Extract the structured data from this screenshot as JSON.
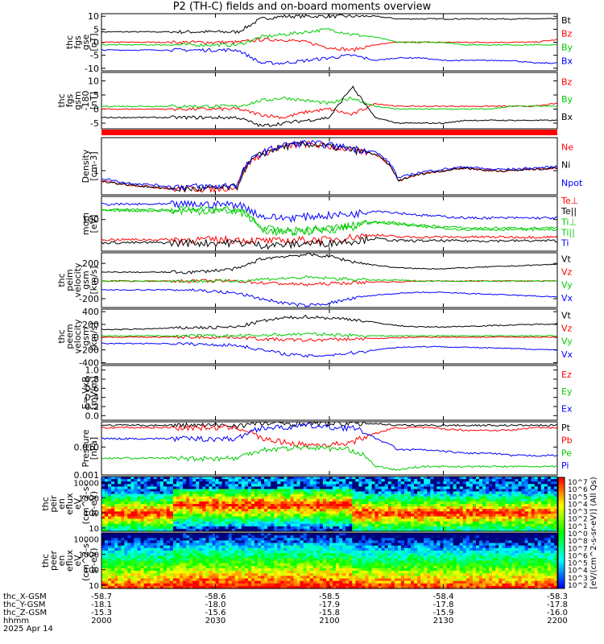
{
  "title": "P2 (TH-C) fields and on-board moments overview",
  "colors": {
    "black": "#000000",
    "red": "#ff0000",
    "green": "#00cc00",
    "blue": "#0000ff"
  },
  "chart_data": [
    {
      "type": "line",
      "ylabel": [
        "thc",
        "fgs",
        "gse",
        "[nT]"
      ],
      "yticks": [
        "10",
        "5",
        "0",
        "-5",
        "-10"
      ],
      "ylim": [
        -11,
        11
      ],
      "series": [
        {
          "name": "Bt",
          "color": "#000000",
          "values": [
            4,
            4,
            4,
            4,
            4,
            4,
            4,
            9,
            10,
            10,
            10,
            10,
            10,
            9,
            9,
            9,
            9,
            9,
            9,
            9,
            9
          ]
        },
        {
          "name": "Bz",
          "color": "#ff0000",
          "values": [
            0,
            0,
            0,
            0,
            0,
            0,
            0,
            1,
            1,
            0,
            -2,
            -3,
            -1,
            0,
            0,
            0,
            0,
            0,
            0,
            0,
            1
          ]
        },
        {
          "name": "By",
          "color": "#00cc00",
          "values": [
            -1,
            -1,
            -1,
            -1,
            -1,
            -1,
            -1,
            2,
            3,
            4,
            5,
            3,
            2,
            0,
            0,
            0,
            -1,
            -1,
            -1,
            -1,
            -1
          ]
        },
        {
          "name": "Bx",
          "color": "#0000ff",
          "values": [
            -3,
            -3,
            -3,
            -3,
            -3,
            -3,
            -3,
            -8,
            -8,
            -7,
            -6,
            -5,
            -7,
            -6,
            -6,
            -7,
            -7,
            -7,
            -7,
            -8,
            -8
          ]
        }
      ]
    },
    {
      "type": "line",
      "ylabel": [
        "thc",
        "fgs",
        "gsm",
        "-180",
        "[nT]"
      ],
      "yticks": [
        "10",
        "5",
        "0",
        "-5"
      ],
      "ylim": [
        -7,
        13
      ],
      "series": [
        {
          "name": "Bz",
          "color": "#ff0000",
          "values": [
            0,
            0,
            0,
            0,
            0,
            0,
            0,
            -2,
            -3,
            -1,
            0,
            -2,
            2,
            1,
            1,
            1,
            1,
            1,
            1,
            1,
            2
          ]
        },
        {
          "name": "By",
          "color": "#00cc00",
          "values": [
            1,
            1,
            1,
            1,
            1,
            1,
            1,
            3,
            4,
            3,
            2,
            4,
            1,
            0,
            0,
            0,
            0,
            0,
            1,
            1,
            1
          ]
        },
        {
          "name": "Bx",
          "color": "#000000",
          "values": [
            -3,
            -3,
            -3,
            -3,
            -3,
            -3,
            -3,
            -6,
            -5,
            -4,
            -3,
            8,
            -3,
            -5,
            -5,
            -5,
            -4,
            -4,
            -4,
            -4,
            -4
          ]
        }
      ]
    },
    {
      "type": "line",
      "ylabel": [
        "Density",
        "[cm-3]"
      ],
      "yticks": [
        "1"
      ],
      "ylog": true,
      "ylim": [
        0.2,
        9
      ],
      "series": [
        {
          "name": "Ne",
          "color": "#ff0000",
          "values": [
            0.5,
            0.4,
            0.35,
            0.3,
            0.3,
            0.3,
            0.35,
            3,
            5,
            6,
            5,
            4,
            3,
            0.5,
            0.8,
            1,
            1.2,
            1,
            1,
            1.1,
            1.2
          ]
        },
        {
          "name": "Ni",
          "color": "#000000",
          "values": [
            0.5,
            0.4,
            0.35,
            0.3,
            0.3,
            0.3,
            0.35,
            3,
            5,
            6,
            5,
            4,
            3,
            0.5,
            0.8,
            1,
            1.2,
            1,
            1,
            1.1,
            1.2
          ]
        },
        {
          "name": "Npot",
          "color": "#0000ff",
          "values": [
            0.6,
            0.45,
            0.4,
            0.35,
            0.35,
            0.35,
            0.4,
            3.2,
            5.5,
            6.5,
            5.5,
            4.5,
            3.5,
            0.6,
            0.9,
            1.1,
            1.3,
            1.1,
            1.1,
            1.2,
            1.3
          ]
        }
      ]
    },
    {
      "type": "line",
      "ylabel": [
        "mom",
        "[eV]"
      ],
      "yticks": [
        "100"
      ],
      "ylog": true,
      "ylim": [
        15,
        400
      ],
      "series": [
        {
          "name": "Te⊥",
          "color": "#ff0000",
          "values": [
            30,
            30,
            30,
            30,
            30,
            30,
            30,
            28,
            28,
            30,
            30,
            35,
            40,
            35,
            35,
            35,
            35,
            35,
            35,
            35,
            35
          ]
        },
        {
          "name": "Te||",
          "color": "#000000",
          "values": [
            25,
            25,
            25,
            25,
            25,
            25,
            25,
            22,
            22,
            24,
            25,
            28,
            32,
            28,
            28,
            28,
            28,
            28,
            28,
            28,
            28
          ]
        },
        {
          "name": "Ti⊥",
          "color": "#00cc00",
          "values": [
            180,
            180,
            180,
            180,
            180,
            180,
            180,
            60,
            50,
            55,
            60,
            70,
            90,
            80,
            70,
            65,
            60,
            60,
            60,
            60,
            60
          ]
        },
        {
          "name": "Ti||",
          "color": "#00cc00",
          "values": [
            170,
            170,
            170,
            170,
            170,
            170,
            170,
            55,
            45,
            50,
            55,
            65,
            85,
            75,
            65,
            60,
            55,
            55,
            55,
            55,
            55
          ]
        },
        {
          "name": "Ti",
          "color": "#0000ff",
          "values": [
            250,
            250,
            250,
            250,
            250,
            250,
            250,
            120,
            110,
            120,
            130,
            140,
            170,
            150,
            130,
            120,
            110,
            110,
            110,
            110,
            110
          ]
        }
      ]
    },
    {
      "type": "line",
      "ylabel": [
        "thc",
        "peim",
        "velocity",
        "gsm",
        "[km/s]"
      ],
      "yticks": [
        "200",
        "0",
        "-200"
      ],
      "ylim": [
        -300,
        320
      ],
      "series": [
        {
          "name": "Vt",
          "color": "#000000",
          "values": [
            100,
            100,
            100,
            100,
            100,
            120,
            140,
            250,
            280,
            300,
            280,
            220,
            180,
            150,
            140,
            140,
            150,
            160,
            170,
            180,
            190
          ]
        },
        {
          "name": "Vz",
          "color": "#ff0000",
          "values": [
            0,
            0,
            0,
            0,
            0,
            0,
            0,
            -20,
            -30,
            -40,
            -30,
            -20,
            -10,
            -10,
            0,
            0,
            0,
            0,
            0,
            0,
            0
          ]
        },
        {
          "name": "Vy",
          "color": "#00cc00",
          "values": [
            0,
            0,
            0,
            0,
            0,
            0,
            0,
            20,
            30,
            40,
            30,
            20,
            10,
            10,
            0,
            0,
            0,
            0,
            0,
            0,
            0
          ]
        },
        {
          "name": "Vx",
          "color": "#0000ff",
          "values": [
            -100,
            -100,
            -100,
            -100,
            -100,
            -120,
            -140,
            -200,
            -250,
            -280,
            -250,
            -200,
            -160,
            -140,
            -130,
            -130,
            -140,
            -150,
            -160,
            -170,
            -180
          ]
        }
      ]
    },
    {
      "type": "line",
      "ylabel": [
        "thc",
        "peem",
        "velocity",
        "gsm",
        "[km/s]"
      ],
      "yticks": [
        "400",
        "200",
        "0",
        "-200",
        "-400"
      ],
      "ylim": [
        -420,
        440
      ],
      "series": [
        {
          "name": "Vt",
          "color": "#000000",
          "values": [
            120,
            120,
            130,
            140,
            150,
            150,
            160,
            250,
            300,
            320,
            300,
            280,
            230,
            180,
            160,
            160,
            170,
            180,
            190,
            200,
            210
          ]
        },
        {
          "name": "Vz",
          "color": "#ff0000",
          "values": [
            0,
            0,
            0,
            0,
            0,
            0,
            0,
            -30,
            -40,
            -50,
            -40,
            -30,
            -20,
            -10,
            0,
            0,
            0,
            0,
            0,
            0,
            0
          ]
        },
        {
          "name": "Vy",
          "color": "#00cc00",
          "values": [
            20,
            20,
            20,
            20,
            20,
            20,
            20,
            30,
            40,
            50,
            40,
            30,
            20,
            20,
            20,
            20,
            20,
            20,
            20,
            20,
            20
          ]
        },
        {
          "name": "Vx",
          "color": "#0000ff",
          "values": [
            -100,
            -100,
            -100,
            -100,
            -110,
            -120,
            -130,
            -200,
            -260,
            -300,
            -280,
            -250,
            -200,
            -160,
            -150,
            -150,
            -160,
            -170,
            -180,
            -190,
            -200
          ]
        }
      ]
    },
    {
      "type": "line",
      "ylabel": [
        "E=-VxB",
        "[mV/m]"
      ],
      "yticks": [
        "1.0",
        "0.8",
        "0.6",
        "0.4",
        "0.2",
        "0.0"
      ],
      "ylim": [
        -0.1,
        1.1
      ],
      "series": [
        {
          "name": "Ez",
          "color": "#ff0000",
          "values": []
        },
        {
          "name": "Ey",
          "color": "#00cc00",
          "values": []
        },
        {
          "name": "Ex",
          "color": "#0000ff",
          "values": []
        }
      ]
    },
    {
      "type": "line",
      "ylabel": [
        "Pressure",
        "[nPa]"
      ],
      "yticks": [
        "0.010",
        "0.001"
      ],
      "ylog": true,
      "ylim": [
        0.001,
        0.08
      ],
      "series": [
        {
          "name": "Pt",
          "color": "#000000",
          "values": [
            0.06,
            0.06,
            0.06,
            0.06,
            0.06,
            0.06,
            0.06,
            0.07,
            0.07,
            0.07,
            0.07,
            0.07,
            0.07,
            0.06,
            0.06,
            0.06,
            0.06,
            0.06,
            0.06,
            0.06,
            0.06
          ]
        },
        {
          "name": "Pb",
          "color": "#ff0000",
          "values": [
            0.05,
            0.05,
            0.05,
            0.05,
            0.05,
            0.05,
            0.05,
            0.02,
            0.015,
            0.012,
            0.012,
            0.015,
            0.03,
            0.05,
            0.05,
            0.045,
            0.04,
            0.04,
            0.04,
            0.05,
            0.05
          ]
        },
        {
          "name": "Pe",
          "color": "#00cc00",
          "values": [
            0.004,
            0.004,
            0.004,
            0.004,
            0.004,
            0.004,
            0.004,
            0.008,
            0.009,
            0.01,
            0.009,
            0.008,
            0.002,
            0.0015,
            0.002,
            0.002,
            0.002,
            0.002,
            0.002,
            0.002,
            0.002
          ]
        },
        {
          "name": "Pi",
          "color": "#0000ff",
          "values": [
            0.02,
            0.02,
            0.02,
            0.02,
            0.02,
            0.02,
            0.02,
            0.05,
            0.05,
            0.06,
            0.05,
            0.05,
            0.02,
            0.008,
            0.008,
            0.007,
            0.006,
            0.006,
            0.005,
            0.005,
            0.005
          ]
        }
      ]
    },
    {
      "type": "heatmap",
      "ylabel": [
        "thc",
        "peir",
        "en",
        "eflux",
        "eV",
        "(cm^2-s-",
        "sr-eV)"
      ],
      "yticks": [
        "10000",
        "1000",
        "100",
        "10"
      ],
      "ylog": true
    },
    {
      "type": "heatmap",
      "ylabel": [
        "thc",
        "peer",
        "en",
        "eflux",
        "eV",
        "(cm^2-s-",
        "sr-eV)"
      ],
      "yticks": [
        "10000",
        "1000",
        "100",
        "10"
      ],
      "ylog": true
    }
  ],
  "colorbar": {
    "label": "[eV/(cm^2-s-sr-eV)] (All Qs)",
    "ticks": [
      "10^7",
      "10^6",
      "10^5",
      "10^4",
      "10^3",
      "10^2",
      "10^1",
      "10^0",
      "10^8",
      "10^7",
      "10^6",
      "10^5",
      "10^4",
      "10^3",
      "10^2"
    ]
  },
  "xaxis": {
    "row_labels": [
      "thc_X-GSM",
      "thc_Y-GSM",
      "thc_Z-GSM",
      "hhmm",
      "2025 Apr 14"
    ],
    "columns": [
      [
        "-58.7",
        "-18.1",
        "-15.3",
        "2000"
      ],
      [
        "-58.6",
        "-18.0",
        "-15.6",
        "2030"
      ],
      [
        "-58.5",
        "-17.9",
        "-15.8",
        "2100"
      ],
      [
        "-58.4",
        "-17.8",
        "-15.9",
        "2130"
      ],
      [
        "-58.3",
        "-17.8",
        "-16.0",
        "2200"
      ]
    ]
  }
}
